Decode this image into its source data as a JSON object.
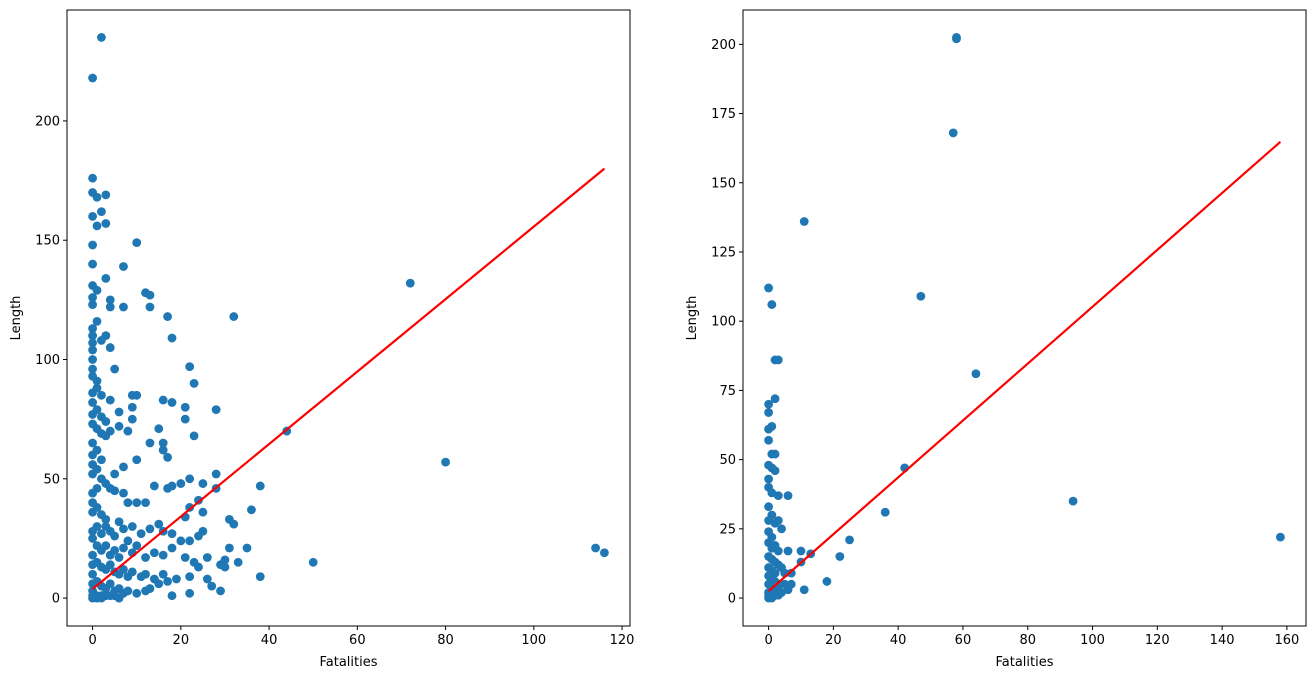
{
  "chart_data": [
    {
      "type": "scatter",
      "xlabel": "Fatalities",
      "ylabel": "Length",
      "xlim": [
        -5.8,
        121.8
      ],
      "ylim": [
        -11.7,
        246.5
      ],
      "xticks": [
        0,
        20,
        40,
        60,
        80,
        100,
        120
      ],
      "yticks": [
        0,
        50,
        100,
        150,
        200
      ],
      "point_color": "#1f77b4",
      "fit_color": "#ff0000",
      "points": [
        [
          2,
          235
        ],
        [
          0,
          218
        ],
        [
          0,
          176
        ],
        [
          0,
          170
        ],
        [
          1,
          168
        ],
        [
          3,
          169
        ],
        [
          2,
          162
        ],
        [
          0,
          160
        ],
        [
          1,
          156
        ],
        [
          3,
          157
        ],
        [
          0,
          148
        ],
        [
          10,
          149
        ],
        [
          0,
          140
        ],
        [
          7,
          139
        ],
        [
          3,
          134
        ],
        [
          0,
          131
        ],
        [
          1,
          129
        ],
        [
          0,
          126
        ],
        [
          0,
          123
        ],
        [
          4,
          125
        ],
        [
          12,
          128
        ],
        [
          13,
          127
        ],
        [
          17,
          118
        ],
        [
          32,
          118
        ],
        [
          1,
          116
        ],
        [
          0,
          113
        ],
        [
          0,
          110
        ],
        [
          3,
          110
        ],
        [
          0,
          107
        ],
        [
          2,
          108
        ],
        [
          4,
          122
        ],
        [
          7,
          122
        ],
        [
          13,
          122
        ],
        [
          0,
          104
        ],
        [
          0,
          100
        ],
        [
          4,
          105
        ],
        [
          18,
          109
        ],
        [
          0,
          96
        ],
        [
          5,
          96
        ],
        [
          22,
          97
        ],
        [
          0,
          93
        ],
        [
          1,
          91
        ],
        [
          1,
          88
        ],
        [
          0,
          86
        ],
        [
          2,
          85
        ],
        [
          9,
          85
        ],
        [
          10,
          85
        ],
        [
          4,
          83
        ],
        [
          23,
          90
        ],
        [
          16,
          83
        ],
        [
          18,
          82
        ],
        [
          21,
          80
        ],
        [
          28,
          79
        ],
        [
          0,
          82
        ],
        [
          1,
          79
        ],
        [
          2,
          76
        ],
        [
          3,
          74
        ],
        [
          6,
          78
        ],
        [
          9,
          80
        ],
        [
          0,
          77
        ],
        [
          0,
          73
        ],
        [
          1,
          71
        ],
        [
          2,
          69
        ],
        [
          4,
          70
        ],
        [
          6,
          72
        ],
        [
          8,
          70
        ],
        [
          9,
          75
        ],
        [
          15,
          71
        ],
        [
          13,
          65
        ],
        [
          16,
          65
        ],
        [
          16,
          62
        ],
        [
          21,
          75
        ],
        [
          23,
          68
        ],
        [
          17,
          59
        ],
        [
          10,
          58
        ],
        [
          7,
          55
        ],
        [
          5,
          52
        ],
        [
          3,
          68
        ],
        [
          0,
          65
        ],
        [
          0,
          60
        ],
        [
          1,
          62
        ],
        [
          2,
          58
        ],
        [
          0,
          56
        ],
        [
          1,
          54
        ],
        [
          0,
          52
        ],
        [
          2,
          50
        ],
        [
          3,
          48
        ],
        [
          4,
          46
        ],
        [
          1,
          46
        ],
        [
          0,
          44
        ],
        [
          5,
          45
        ],
        [
          7,
          44
        ],
        [
          8,
          40
        ],
        [
          10,
          40
        ],
        [
          12,
          40
        ],
        [
          14,
          47
        ],
        [
          17,
          46
        ],
        [
          18,
          47
        ],
        [
          20,
          48
        ],
        [
          22,
          50
        ],
        [
          25,
          48
        ],
        [
          28,
          52
        ],
        [
          28,
          46
        ],
        [
          24,
          41
        ],
        [
          21,
          34
        ],
        [
          22,
          38
        ],
        [
          25,
          36
        ],
        [
          31,
          33
        ],
        [
          32,
          31
        ],
        [
          36,
          37
        ],
        [
          38,
          47
        ],
        [
          44,
          70
        ],
        [
          72,
          132
        ],
        [
          80,
          57
        ],
        [
          50,
          15
        ],
        [
          114,
          21
        ],
        [
          116,
          19
        ],
        [
          0,
          40
        ],
        [
          0,
          36
        ],
        [
          1,
          38
        ],
        [
          2,
          35
        ],
        [
          3,
          33
        ],
        [
          1,
          30
        ],
        [
          0,
          28
        ],
        [
          2,
          27
        ],
        [
          3,
          30
        ],
        [
          4,
          28
        ],
        [
          5,
          26
        ],
        [
          6,
          32
        ],
        [
          7,
          29
        ],
        [
          8,
          24
        ],
        [
          9,
          30
        ],
        [
          11,
          27
        ],
        [
          13,
          29
        ],
        [
          15,
          31
        ],
        [
          16,
          28
        ],
        [
          18,
          27
        ],
        [
          20,
          24
        ],
        [
          22,
          24
        ],
        [
          24,
          26
        ],
        [
          25,
          28
        ],
        [
          0,
          25
        ],
        [
          1,
          22
        ],
        [
          2,
          20
        ],
        [
          3,
          22
        ],
        [
          4,
          18
        ],
        [
          5,
          20
        ],
        [
          6,
          17
        ],
        [
          7,
          21
        ],
        [
          9,
          19
        ],
        [
          10,
          22
        ],
        [
          12,
          17
        ],
        [
          14,
          19
        ],
        [
          16,
          18
        ],
        [
          18,
          21
        ],
        [
          21,
          17
        ],
        [
          23,
          15
        ],
        [
          26,
          17
        ],
        [
          29,
          14
        ],
        [
          30,
          16
        ],
        [
          31,
          21
        ],
        [
          33,
          15
        ],
        [
          35,
          21
        ],
        [
          38,
          9
        ],
        [
          0,
          18
        ],
        [
          0,
          14
        ],
        [
          1,
          15
        ],
        [
          2,
          13
        ],
        [
          3,
          12
        ],
        [
          4,
          14
        ],
        [
          5,
          11
        ],
        [
          6,
          10
        ],
        [
          7,
          12
        ],
        [
          8,
          9
        ],
        [
          9,
          11
        ],
        [
          11,
          9
        ],
        [
          12,
          10
        ],
        [
          14,
          8
        ],
        [
          16,
          10
        ],
        [
          17,
          7
        ],
        [
          19,
          8
        ],
        [
          22,
          9
        ],
        [
          24,
          13
        ],
        [
          26,
          8
        ],
        [
          27,
          5
        ],
        [
          29,
          3
        ],
        [
          30,
          13
        ],
        [
          0,
          10
        ],
        [
          0,
          6
        ],
        [
          1,
          7
        ],
        [
          2,
          5
        ],
        [
          3,
          4
        ],
        [
          4,
          6
        ],
        [
          5,
          3
        ],
        [
          6,
          4
        ],
        [
          7,
          2
        ],
        [
          8,
          3
        ],
        [
          10,
          2
        ],
        [
          12,
          3
        ],
        [
          13,
          4
        ],
        [
          15,
          6
        ],
        [
          18,
          1
        ],
        [
          22,
          2
        ],
        [
          0,
          3
        ],
        [
          0,
          1
        ],
        [
          1,
          1
        ],
        [
          2,
          1
        ],
        [
          3,
          1
        ],
        [
          4,
          1
        ],
        [
          0,
          0
        ],
        [
          1,
          0
        ],
        [
          2,
          0
        ],
        [
          5,
          1
        ],
        [
          6,
          0
        ]
      ],
      "fit_line": {
        "x": [
          0,
          116
        ],
        "y": [
          3.8,
          180
        ]
      }
    },
    {
      "type": "scatter",
      "xlabel": "Fatalities",
      "ylabel": "Length",
      "xlim": [
        -7.9,
        165.9
      ],
      "ylim": [
        -10.1,
        212.4
      ],
      "xticks": [
        0,
        20,
        40,
        60,
        80,
        100,
        120,
        140,
        160
      ],
      "yticks": [
        0,
        25,
        50,
        75,
        100,
        125,
        150,
        175,
        200
      ],
      "point_color": "#1f77b4",
      "fit_color": "#ff0000",
      "points": [
        [
          58,
          202
        ],
        [
          58,
          202.5
        ],
        [
          57,
          168
        ],
        [
          11,
          136
        ],
        [
          0,
          112
        ],
        [
          1,
          106
        ],
        [
          47,
          109
        ],
        [
          2,
          86
        ],
        [
          3,
          86
        ],
        [
          64,
          81
        ],
        [
          2,
          72
        ],
        [
          0,
          70
        ],
        [
          0,
          67
        ],
        [
          1,
          62
        ],
        [
          0,
          61
        ],
        [
          0,
          57
        ],
        [
          1,
          52
        ],
        [
          2,
          52
        ],
        [
          0,
          48
        ],
        [
          1,
          47
        ],
        [
          2,
          46
        ],
        [
          42,
          47
        ],
        [
          0,
          43
        ],
        [
          0,
          40
        ],
        [
          1,
          38
        ],
        [
          3,
          37
        ],
        [
          6,
          37
        ],
        [
          94,
          35
        ],
        [
          36,
          31
        ],
        [
          0,
          33
        ],
        [
          1,
          30
        ],
        [
          0,
          28
        ],
        [
          2,
          27
        ],
        [
          3,
          28
        ],
        [
          4,
          25
        ],
        [
          0,
          24
        ],
        [
          1,
          22
        ],
        [
          25,
          21
        ],
        [
          158,
          22
        ],
        [
          0,
          20
        ],
        [
          1,
          18
        ],
        [
          2,
          19
        ],
        [
          3,
          17
        ],
        [
          6,
          17
        ],
        [
          10,
          17
        ],
        [
          13,
          16
        ],
        [
          22,
          15
        ],
        [
          0,
          15
        ],
        [
          1,
          14
        ],
        [
          2,
          13
        ],
        [
          3,
          12
        ],
        [
          4,
          11
        ],
        [
          10,
          13
        ],
        [
          0,
          11
        ],
        [
          1,
          10
        ],
        [
          2,
          9
        ],
        [
          5,
          9
        ],
        [
          7,
          9
        ],
        [
          0,
          8
        ],
        [
          1,
          7
        ],
        [
          2,
          6
        ],
        [
          3,
          5
        ],
        [
          5,
          5
        ],
        [
          7,
          5
        ],
        [
          18,
          6
        ],
        [
          0,
          5
        ],
        [
          1,
          4
        ],
        [
          2,
          3
        ],
        [
          3,
          3
        ],
        [
          6,
          3
        ],
        [
          11,
          3
        ],
        [
          0,
          2
        ],
        [
          1,
          1
        ],
        [
          2,
          1
        ],
        [
          3,
          1
        ],
        [
          0,
          1
        ],
        [
          0,
          0
        ],
        [
          1,
          0
        ],
        [
          4,
          2
        ]
      ],
      "fit_line": {
        "x": [
          0,
          158
        ],
        "y": [
          2.5,
          164.8
        ]
      }
    }
  ]
}
